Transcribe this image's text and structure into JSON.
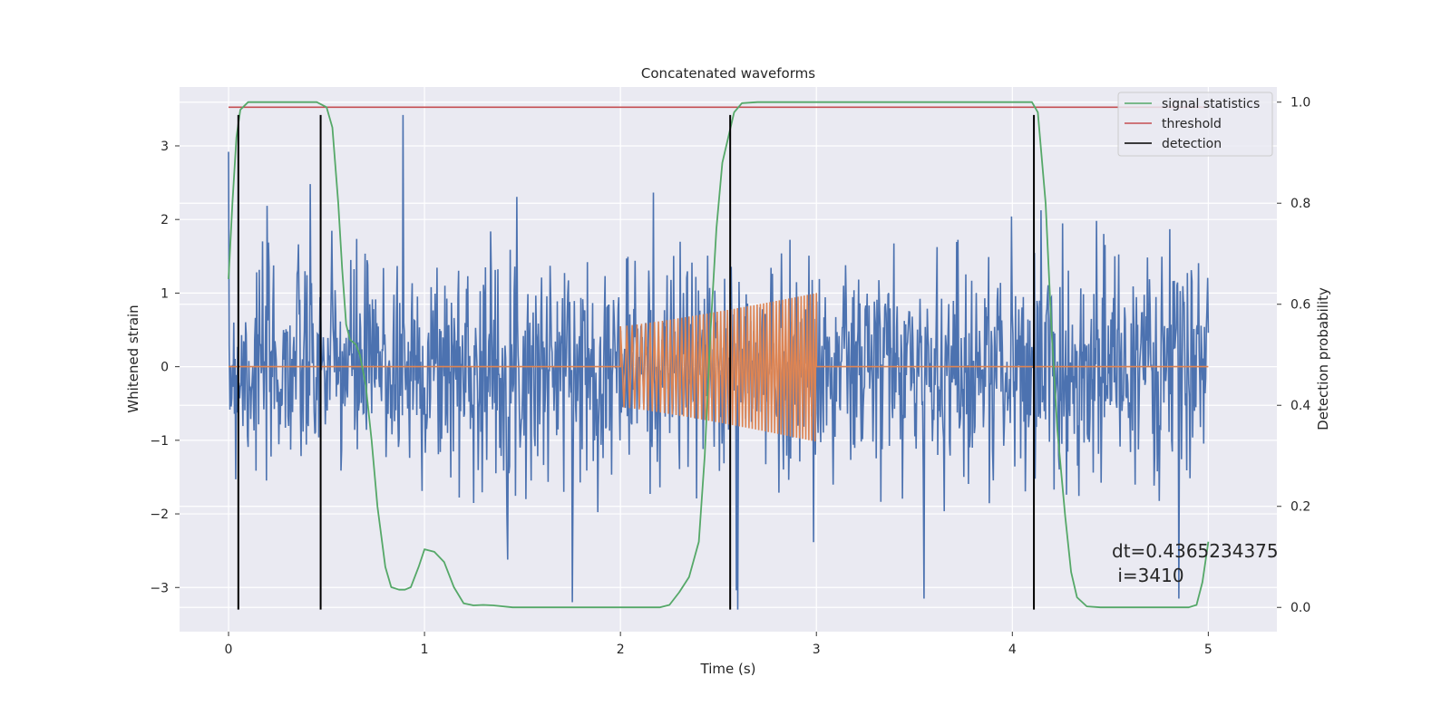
{
  "chart_data": {
    "type": "line",
    "title": "Concatenated waveforms",
    "xlabel": "Time (s)",
    "ylabel": "Whitened strain",
    "ylabel_right": "Detection probability",
    "xlim": [
      -0.25,
      5.35
    ],
    "ylim": [
      -3.6,
      3.8
    ],
    "ylim_right": [
      -0.048,
      1.03
    ],
    "x_ticks": [
      0,
      1,
      2,
      3,
      4,
      5
    ],
    "y_ticks": [
      -3,
      -2,
      -1,
      0,
      1,
      2,
      3
    ],
    "y_ticks_right": [
      0.0,
      0.2,
      0.4,
      0.6,
      0.8,
      1.0
    ],
    "x_tick_labels": [
      "0",
      "1",
      "2",
      "3",
      "4",
      "5"
    ],
    "y_tick_labels": [
      "−3",
      "−2",
      "−1",
      "0",
      "1",
      "2",
      "3"
    ],
    "y_tick_labels_right": [
      "0.0",
      "0.2",
      "0.4",
      "0.6",
      "0.8",
      "1.0"
    ],
    "grid": true,
    "legend_position": "top-right",
    "colors": {
      "strain": "#4c72b0",
      "template": "#dd8452",
      "signal_statistics": "#55a868",
      "threshold": "#c44e52",
      "detection": "#000000",
      "axes_bg": "#eaeaf2",
      "grid": "#ffffff"
    },
    "series": [
      {
        "name": "signal statistics",
        "axis": "right",
        "points": [
          [
            0,
            0.65
          ],
          [
            0.02,
            0.8
          ],
          [
            0.04,
            0.93
          ],
          [
            0.06,
            0.985
          ],
          [
            0.1,
            1.0
          ],
          [
            0.45,
            1.0
          ],
          [
            0.5,
            0.99
          ],
          [
            0.53,
            0.95
          ],
          [
            0.56,
            0.8
          ],
          [
            0.58,
            0.67
          ],
          [
            0.6,
            0.56
          ],
          [
            0.62,
            0.53
          ],
          [
            0.65,
            0.52
          ],
          [
            0.67,
            0.5
          ],
          [
            0.7,
            0.44
          ],
          [
            0.73,
            0.33
          ],
          [
            0.76,
            0.2
          ],
          [
            0.8,
            0.08
          ],
          [
            0.83,
            0.04
          ],
          [
            0.87,
            0.035
          ],
          [
            0.9,
            0.035
          ],
          [
            0.93,
            0.04
          ],
          [
            0.97,
            0.08
          ],
          [
            1.0,
            0.115
          ],
          [
            1.05,
            0.11
          ],
          [
            1.1,
            0.09
          ],
          [
            1.15,
            0.04
          ],
          [
            1.2,
            0.008
          ],
          [
            1.25,
            0.004
          ],
          [
            1.3,
            0.005
          ],
          [
            1.35,
            0.004
          ],
          [
            1.45,
            0.0
          ],
          [
            2.2,
            0.0
          ],
          [
            2.25,
            0.005
          ],
          [
            2.3,
            0.03
          ],
          [
            2.35,
            0.06
          ],
          [
            2.4,
            0.13
          ],
          [
            2.43,
            0.3
          ],
          [
            2.46,
            0.55
          ],
          [
            2.49,
            0.75
          ],
          [
            2.52,
            0.88
          ],
          [
            2.55,
            0.93
          ],
          [
            2.58,
            0.98
          ],
          [
            2.62,
            0.998
          ],
          [
            2.7,
            1.0
          ],
          [
            4.1,
            1.0
          ],
          [
            4.13,
            0.98
          ],
          [
            4.17,
            0.8
          ],
          [
            4.2,
            0.55
          ],
          [
            4.23,
            0.35
          ],
          [
            4.27,
            0.18
          ],
          [
            4.3,
            0.07
          ],
          [
            4.33,
            0.02
          ],
          [
            4.38,
            0.002
          ],
          [
            4.45,
            0.0
          ],
          [
            4.9,
            0.0
          ],
          [
            4.94,
            0.005
          ],
          [
            4.97,
            0.05
          ],
          [
            5.0,
            0.13
          ]
        ]
      },
      {
        "name": "threshold",
        "axis": "right",
        "x": [
          0,
          5
        ],
        "value": 0.99
      },
      {
        "name": "detection",
        "axis": "left",
        "x": [
          0.05,
          0.47,
          2.56,
          4.11
        ],
        "y_range": [
          -3.3,
          3.42
        ]
      },
      {
        "axis": "left",
        "x_range": [
          0,
          5
        ],
        "samples": 1500,
        "std": 0.75,
        "extremes": [
          [
            0.89,
            3.42
          ],
          [
            2.6,
            -3.3
          ],
          [
            3.55,
            -3.15
          ],
          [
            4.85,
            -3.15
          ]
        ]
      },
      {
        "axis": "left",
        "x_range": [
          0,
          5
        ],
        "chirp": {
          "start": 2.0,
          "end": 3.0,
          "amp_start": 0.55,
          "amp_end": 1.0,
          "amp_start_neg": -0.55,
          "amp_end_neg": -1.02
        }
      }
    ],
    "annotation": {
      "lines": [
        "dt=0.4365234375",
        " i=3410"
      ],
      "x": 4.5,
      "y": -2.5
    }
  }
}
